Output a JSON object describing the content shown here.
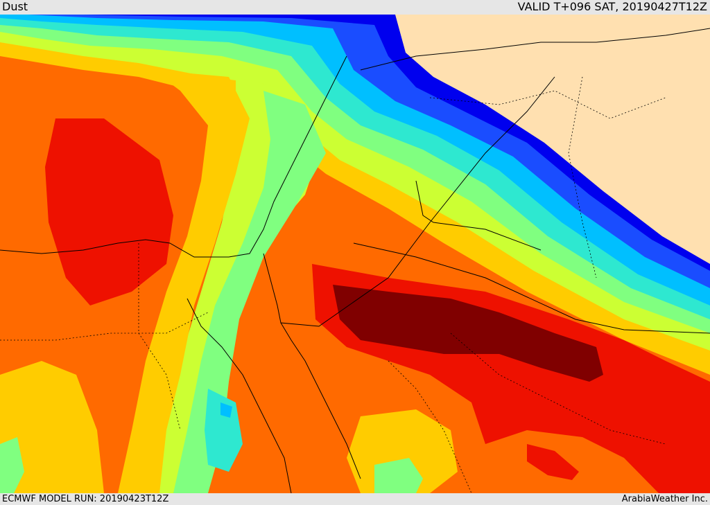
{
  "header": {
    "title": "Dust",
    "valid": "VALID T+096 SAT, 20190427T12Z"
  },
  "footer": {
    "model_run": "ECMWF MODEL RUN: 20190423T12Z",
    "credit": "ArabiaWeather Inc."
  },
  "colors": {
    "land_nodata": "#ffe0b0",
    "darkblue": "#0000ee",
    "blue": "#1a4dff",
    "cyan": "#00bfff",
    "aqua": "#2ee8d0",
    "green": "#80ff80",
    "yellowgreen": "#ccff33",
    "yellow": "#ffcc00",
    "orange": "#ff6a00",
    "red": "#ee1100",
    "darkred": "#800000",
    "border": "#000000"
  }
}
